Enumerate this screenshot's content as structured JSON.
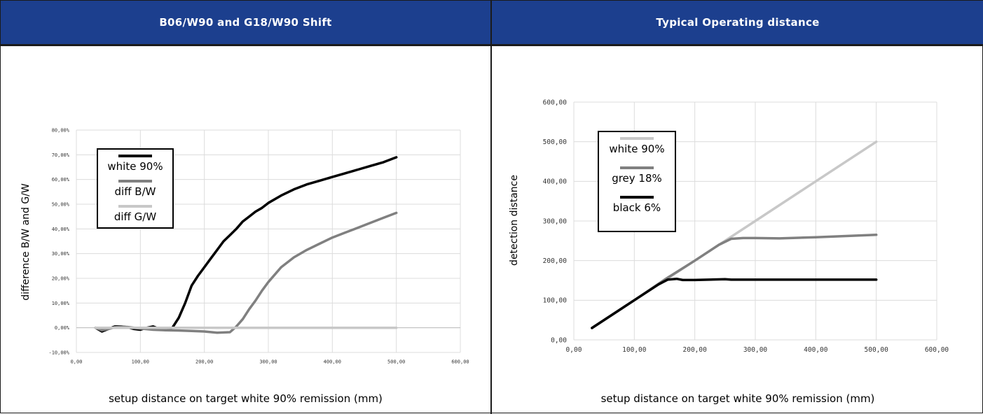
{
  "charts": [
    {
      "header_title": "B06/W90 and G18/W90 Shift",
      "chart_data": {
        "type": "line",
        "title": "B06/W90 and G18/W90 Shift",
        "xlabel": "setup distance on target white 90% remission (mm)",
        "ylabel": "difference B/W and G/W",
        "xlim": [
          0,
          600
        ],
        "ylim": [
          -10,
          80
        ],
        "x_ticks": [
          0,
          100,
          200,
          300,
          400,
          500,
          600
        ],
        "x_tick_labels": [
          "0,00",
          "100,00",
          "200,00",
          "300,00",
          "400,00",
          "500,00",
          "600,00"
        ],
        "y_ticks": [
          -10,
          0,
          10,
          20,
          30,
          40,
          50,
          60,
          70,
          80
        ],
        "y_tick_labels": [
          "-10,00%",
          "0,00%",
          "10,00%",
          "20,00%",
          "30,00%",
          "40,00%",
          "50,00%",
          "60,00%",
          "70,00%",
          "80,00%"
        ],
        "grid": true,
        "legend_position": "top-left",
        "series": [
          {
            "name": "white 90%",
            "color": "#000000",
            "x": [
              30,
              40,
              50,
              60,
              70,
              80,
              90,
              100,
              110,
              120,
              130,
              140,
              150,
              160,
              170,
              180,
              190,
              200,
              210,
              220,
              230,
              240,
              250,
              260,
              270,
              280,
              290,
              300,
              320,
              340,
              360,
              380,
              400,
              420,
              440,
              460,
              480,
              500
            ],
            "y": [
              0,
              -1.5,
              -0.5,
              0.5,
              0.5,
              0.2,
              -0.5,
              -0.8,
              0,
              0.5,
              -0.5,
              -1,
              0,
              4,
              10,
              17,
              21,
              24.5,
              28,
              31.5,
              35,
              37.5,
              40,
              43,
              45,
              47,
              48.5,
              50.5,
              53.5,
              56,
              58,
              59.5,
              61,
              62.5,
              64,
              65.5,
              67,
              69
            ]
          },
          {
            "name": "diff B/W",
            "color": "#808080",
            "x": [
              30,
              40,
              50,
              60,
              70,
              80,
              100,
              120,
              140,
              160,
              180,
              200,
              220,
              240,
              250,
              260,
              270,
              280,
              290,
              300,
              320,
              340,
              360,
              380,
              400,
              420,
              440,
              460,
              480,
              500
            ],
            "y": [
              0,
              -1,
              -0.5,
              0.2,
              0.4,
              0.3,
              -0.3,
              -0.8,
              -1,
              -1.1,
              -1.3,
              -1.5,
              -2,
              -1.8,
              0.5,
              3.5,
              7.5,
              11,
              15,
              18.5,
              24.5,
              28.5,
              31.5,
              34,
              36.5,
              38.5,
              40.5,
              42.5,
              44.5,
              46.5
            ]
          },
          {
            "name": "diff G/W",
            "color": "#c8c8c8",
            "x": [
              30,
              60,
              100,
              150,
              200,
              250,
              300,
              350,
              400,
              450,
              500
            ],
            "y": [
              0,
              0,
              0,
              0,
              0,
              0,
              0,
              0,
              0,
              0,
              0
            ]
          }
        ]
      }
    },
    {
      "header_title": "Typical Operating distance",
      "chart_data": {
        "type": "line",
        "title": "Typical Operating distance",
        "xlabel": "setup distance on target white 90% remission (mm)",
        "ylabel": "detection distance",
        "xlim": [
          0,
          600
        ],
        "ylim": [
          0,
          600
        ],
        "x_ticks": [
          0,
          100,
          200,
          300,
          400,
          500,
          600
        ],
        "x_tick_labels": [
          "0,00",
          "100,00",
          "200,00",
          "300,00",
          "400,00",
          "500,00",
          "600,00"
        ],
        "y_ticks": [
          0,
          100,
          200,
          300,
          400,
          500,
          600
        ],
        "y_tick_labels": [
          "0,00",
          "100,00",
          "200,00",
          "300,00",
          "400,00",
          "500,00",
          "600,00"
        ],
        "grid": true,
        "legend_position": "top-left",
        "series": [
          {
            "name": "white 90%",
            "color": "#c8c8c8",
            "x": [
              30,
              100,
              150,
              200,
              250,
              300,
              400,
              500
            ],
            "y": [
              30,
              100,
              150,
              200,
              250,
              300,
              400,
              500
            ]
          },
          {
            "name": "grey 18%",
            "color": "#808080",
            "x": [
              30,
              100,
              150,
              200,
              240,
              260,
              280,
              300,
              340,
              400,
              450,
              500
            ],
            "y": [
              30,
              100,
              152,
              200,
              240,
              255,
              257,
              257,
              256,
              259,
              262,
              265
            ]
          },
          {
            "name": "black 6%",
            "color": "#000000",
            "x": [
              30,
              100,
              140,
              155,
              170,
              180,
              200,
              250,
              260,
              300,
              400,
              500
            ],
            "y": [
              30,
              100,
              140,
              152,
              154,
              151,
              151,
              153,
              152,
              152,
              152,
              152
            ]
          }
        ]
      }
    }
  ]
}
